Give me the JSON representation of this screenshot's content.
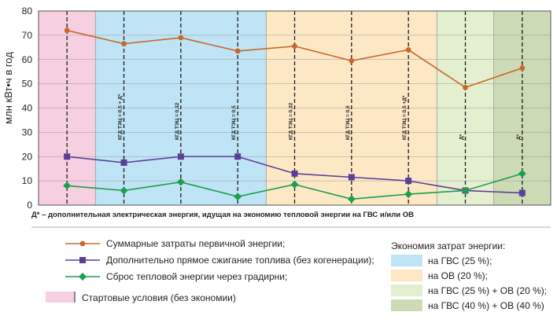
{
  "chart_data": {
    "type": "line",
    "ylabel": "млн кВт•ч в год",
    "ylim": [
      0,
      80
    ],
    "yticks": [
      0,
      10,
      20,
      30,
      40,
      50,
      60,
      70,
      80
    ],
    "x": [
      1,
      2,
      3,
      4,
      5,
      6,
      7,
      8,
      9
    ],
    "xlim": [
      0.5,
      9.5
    ],
    "grid": true,
    "series": [
      {
        "name": "Суммарные затраты первичной энергии;",
        "color": "#c8692b",
        "marker": "circle",
        "values": [
          72,
          66.5,
          69,
          63.5,
          65.5,
          59.5,
          64,
          48.5,
          56.5
        ]
      },
      {
        "name": "Дополнительно прямое сжигание топлива (без когенерации);",
        "color": "#5b3f96",
        "marker": "square",
        "values": [
          20,
          17.5,
          20,
          20,
          13,
          11.5,
          10,
          6,
          5
        ]
      },
      {
        "name": "Сброс тепловой энергии через градирни;",
        "color": "#1e9e4f",
        "marker": "diamond",
        "values": [
          8,
          6,
          9.5,
          3.5,
          8.5,
          2.5,
          4.5,
          6,
          13
        ]
      }
    ],
    "regions": [
      {
        "label": "Стартовые условия (без экономии)",
        "color": "#f6cfe0",
        "x_from": 0.5,
        "x_to": 1.5
      },
      {
        "label": "на ГВС (25 %);",
        "color": "#bfe4f6",
        "x_from": 1.5,
        "x_to": 4.5
      },
      {
        "label": "на ОВ (20 %);",
        "color": "#fde8c6",
        "x_from": 4.5,
        "x_to": 7.5
      },
      {
        "label": "на ГВС (25 %) + ОВ (20 %);",
        "color": "#e4efcf",
        "x_from": 7.5,
        "x_to": 8.5
      },
      {
        "label": "на ГВС (40 %) + ОВ (40 %)",
        "color": "#ccdbb5",
        "x_from": 8.5,
        "x_to": 9.5
      }
    ],
    "point_labels": [
      "",
      "КГД ТЭЦ = 0,5 + Д*",
      "КГД ТЭЦ = 0,32",
      "КГД ТЭЦ = 0,5",
      "КГД ТЭЦ = 0,32",
      "КГД ТЭЦ = 0,5",
      "КГД ТЭЦ = 0,5 +Д*",
      "Д*",
      "Д*"
    ],
    "footnote": "Д* – дополнительная электрическая энергия, идущая на экономию тепловой энергии на ГВС и/или ОВ",
    "legend_savings_title": "Экономия затрат энергии:"
  }
}
